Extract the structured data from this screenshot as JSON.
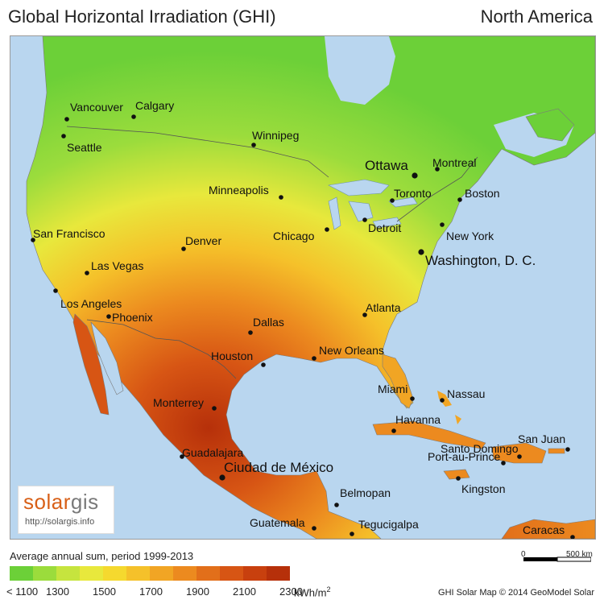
{
  "title_left": "Global Horizontal Irradiation (GHI)",
  "title_right": "North America",
  "cities": [
    {
      "name": "Vancouver"
    },
    {
      "name": "Calgary"
    },
    {
      "name": "Seattle"
    },
    {
      "name": "Winnipeg"
    },
    {
      "name": "Ottawa"
    },
    {
      "name": "Montreal"
    },
    {
      "name": "Toronto"
    },
    {
      "name": "Boston"
    },
    {
      "name": "Minneapolis"
    },
    {
      "name": "Detroit"
    },
    {
      "name": "Chicago"
    },
    {
      "name": "New York"
    },
    {
      "name": "Washington, D. C."
    },
    {
      "name": "San Francisco"
    },
    {
      "name": "Denver"
    },
    {
      "name": "Las Vegas"
    },
    {
      "name": "Los Angeles"
    },
    {
      "name": "Phoenix"
    },
    {
      "name": "Atlanta"
    },
    {
      "name": "Dallas"
    },
    {
      "name": "Houston"
    },
    {
      "name": "New Orleans"
    },
    {
      "name": "Miami"
    },
    {
      "name": "Nassau"
    },
    {
      "name": "Monterrey"
    },
    {
      "name": "Havanna"
    },
    {
      "name": "San Juan"
    },
    {
      "name": "Santo Domingo"
    },
    {
      "name": "Port-au-Prince"
    },
    {
      "name": "Guadalajara"
    },
    {
      "name": "Ciudad de México"
    },
    {
      "name": "Kingston"
    },
    {
      "name": "Belmopan"
    },
    {
      "name": "Guatemala"
    },
    {
      "name": "Tegucigalpa"
    },
    {
      "name": "Caracas"
    }
  ],
  "logo": {
    "brand_a": "solar",
    "brand_b": "gis",
    "url": "http://solargis.info"
  },
  "legend": {
    "title": "Average annual sum, period 1999-2013",
    "colors": [
      "#6cd038",
      "#9bdc3c",
      "#c6e43e",
      "#e8e83c",
      "#f5d92e",
      "#f5c12a",
      "#f1a524",
      "#ec8a1f",
      "#e26f1a",
      "#d75514",
      "#c8400e",
      "#b6300a"
    ],
    "ticks": [
      "< 1100",
      "1300",
      "1500",
      "1700",
      "1900",
      "2100",
      "2300"
    ],
    "unit": "kWh/m",
    "unit_sup": "2"
  },
  "scale": {
    "zero": "0",
    "label": "500 km"
  },
  "credit": "GHI Solar Map © 2014 GeoModel Solar"
}
